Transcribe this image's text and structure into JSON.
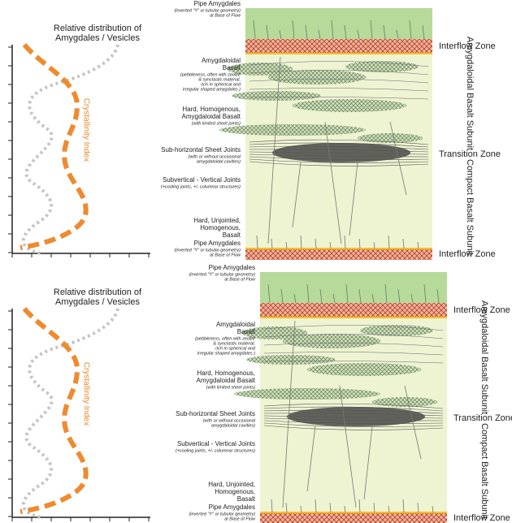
{
  "panels": [
    {
      "graph": {
        "title": [
          "Relative distribution of",
          "Amygdales / Vesicles"
        ],
        "curve_label": "Crystallinity Index"
      },
      "layers": [
        {
          "title": [
            "Pipe Amygdales"
          ],
          "note": [
            "(inverted \"Y\" or tubular geometry)",
            "at Base of Flow"
          ]
        },
        {
          "title": [
            "Amygdaloidal",
            "Basalt"
          ],
          "note": [
            "(pebbleness, often with zeolite",
            "& synclastic material,",
            "rich in spherical and",
            "irregular shaped amygdales )"
          ]
        },
        {
          "title": [
            "Hard, Homogenous,",
            "Amygdaloidal Basalt"
          ],
          "note": [
            "(with limited sheet joints)"
          ]
        },
        {
          "title": [
            "Sub-horizontal Sheet Joints"
          ],
          "note": [
            "(with or without occasional",
            "amygdaloidal cavities)"
          ]
        },
        {
          "title": [
            "Subvertical - Vertical Joints"
          ],
          "note": [
            "(+cooling joints, +/- columnar structures)"
          ]
        },
        {
          "title": [
            "Hard, Unjointed,",
            "Homogenous,",
            "Basalt"
          ],
          "note": []
        },
        {
          "title": [
            "Pipe Amygdales"
          ],
          "note": [
            "(inverted \"Y\" or tubular geometry)",
            "at Base of Flow"
          ]
        }
      ],
      "zones": [
        "Interflow Zone",
        "Amygdaloidal Basalt Subunit",
        "Transition Zone",
        "Compact Basalt Subunit",
        "Interflow Zone"
      ]
    },
    {
      "graph": {
        "title": [
          "Relative distribution of",
          "Amygdales / Vesicles"
        ],
        "curve_label": "Crystallinity Index"
      },
      "layers": [
        {
          "title": [
            "Pipe Amygdales"
          ],
          "note": [
            "(inverted \"Y\" or tubular geometry)",
            "at Base of Flow"
          ]
        },
        {
          "title": [
            "Amygdaloidal",
            "Basalt"
          ],
          "note": [
            "(pebbleness, often with zeolite",
            "& synclastic material,",
            "rich in spherical and",
            "irregular shaped amygdales )"
          ]
        },
        {
          "title": [
            "Hard, Homogenous,",
            "Amygdaloidal Basalt"
          ],
          "note": [
            "(with limited sheet joints)"
          ]
        },
        {
          "title": [
            "Sub-horizontal Sheet Joints"
          ],
          "note": [
            "(with or without occasional",
            "amygdaloidal cavities)"
          ]
        },
        {
          "title": [
            "Subvertical - Vertical Joints"
          ],
          "note": [
            "(+cooling joints, +/- columnar structures)"
          ]
        },
        {
          "title": [
            "Hard, Unjointed,",
            "Homogenous,",
            "Basalt"
          ],
          "note": []
        },
        {
          "title": [
            "Pipe Amygdales"
          ],
          "note": [
            "(inverted \"Y\" or tubular geometry)",
            "at Base of Flow"
          ]
        }
      ],
      "zones": [
        "Interflow Zone",
        "Amygdaloidal Basalt Subunit",
        "Transition Zone",
        "Compact Basalt Subunit",
        "Interflow Zone"
      ]
    }
  ]
}
